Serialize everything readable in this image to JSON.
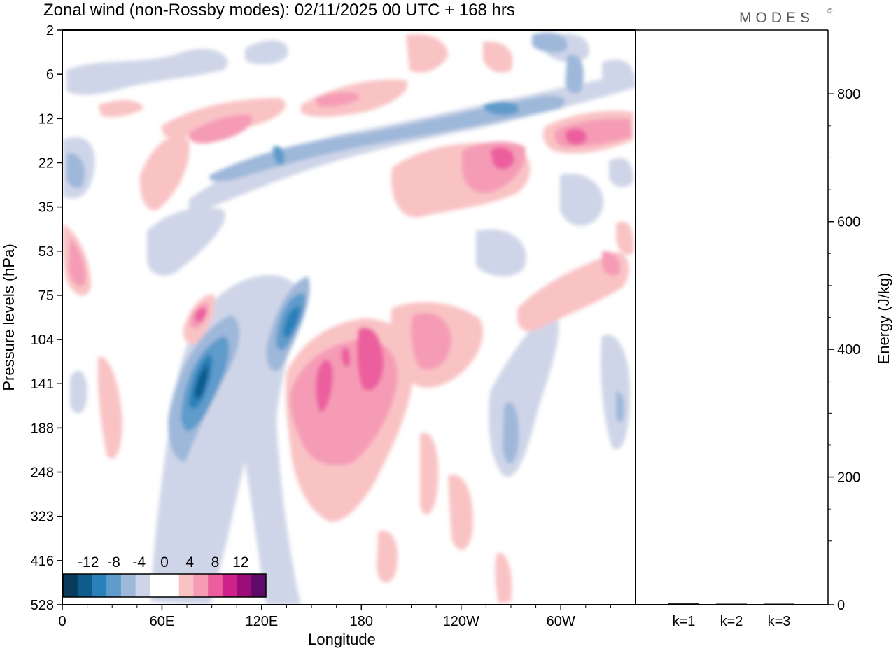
{
  "chart_data": {
    "type": "heatmap",
    "title": "Zonal wind (non-Rossby modes):  02/11/2025  00 UTC  + 168 hrs",
    "logo_text": "MODES",
    "logo_mark": "©",
    "xlabel": "Longitude",
    "ylabel": "Pressure levels (hPa)",
    "x_ticks": [
      "0",
      "60E",
      "120E",
      "180",
      "120W",
      "60W"
    ],
    "x_tick_values": [
      0,
      60,
      120,
      180,
      240,
      300
    ],
    "x_range": [
      0,
      345
    ],
    "y_ticks": [
      "2",
      "6",
      "12",
      "22",
      "35",
      "53",
      "75",
      "104",
      "141",
      "188",
      "248",
      "323",
      "416",
      "528"
    ],
    "colorbar": {
      "labels": [
        "-12",
        "-8",
        "-4",
        "0",
        "4",
        "8",
        "12"
      ],
      "levels": [
        -16,
        -14,
        -12,
        -10,
        -8,
        -6,
        -4,
        -2,
        0,
        2,
        4,
        6,
        8,
        10,
        12,
        14,
        16
      ],
      "colors": [
        "#0a3b5c",
        "#0d5c8c",
        "#2a80b9",
        "#5f9bcb",
        "#9eb8da",
        "#cfd5e8",
        "#ffffff",
        "#ffffff",
        "#f9c3c4",
        "#f59bb6",
        "#ec5f9e",
        "#d0218a",
        "#9c0d7a",
        "#5d0a6b"
      ]
    },
    "features": [
      {
        "lon": 82,
        "level": 141,
        "value": -14,
        "desc": "strong negative core"
      },
      {
        "lon": 138,
        "level": 96,
        "value": -12,
        "desc": "negative core"
      },
      {
        "lon": 60,
        "level": 120,
        "value": -8
      },
      {
        "lon": 152,
        "level": 18,
        "value": -6
      },
      {
        "lon": 270,
        "level": 11,
        "value": -8
      },
      {
        "lon": 290,
        "level": 188,
        "value": -8
      },
      {
        "lon": 78,
        "level": 89,
        "value": 10,
        "desc": "positive core"
      },
      {
        "lon": 150,
        "level": 141,
        "value": 10
      },
      {
        "lon": 180,
        "level": 130,
        "value": 10
      },
      {
        "lon": 245,
        "level": 115,
        "value": 6
      },
      {
        "lon": 262,
        "level": 22,
        "value": 10
      },
      {
        "lon": 310,
        "level": 17,
        "value": 10
      },
      {
        "lon": 15,
        "level": 53,
        "value": 6
      },
      {
        "lon": 235,
        "level": 8,
        "value": 4
      },
      {
        "lon": 95,
        "level": 15,
        "value": 6
      }
    ],
    "side_panel": {
      "type": "bar",
      "categories": [
        "k=1",
        "k=2",
        "k=3"
      ],
      "values": [
        2,
        1.5,
        1
      ],
      "ylabel": "Energy (J/kg)",
      "y_ticks": [
        "0",
        "200",
        "400",
        "600",
        "800"
      ],
      "y_tick_values": [
        0,
        200,
        400,
        600,
        800
      ],
      "ylim": [
        0,
        900
      ]
    }
  }
}
